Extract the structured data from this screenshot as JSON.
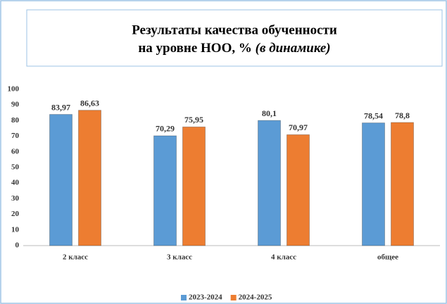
{
  "chart_data": {
    "type": "bar",
    "title": {
      "line1": "Результаты качества обученности",
      "line2": "на уровне НОО, %",
      "line2_italic": "(в динамике)"
    },
    "categories": [
      "2 класс",
      "3 класс",
      "4 класс",
      "общее"
    ],
    "series": [
      {
        "name": "2023-2024",
        "color": "#5b9bd5",
        "values": [
          83.97,
          70.29,
          80.1,
          78.54
        ],
        "value_labels": [
          "83,97",
          "70,29",
          "80,1",
          "78,54"
        ]
      },
      {
        "name": "2024-2025",
        "color": "#ed7d31",
        "values": [
          86.63,
          75.95,
          70.97,
          78.8
        ],
        "value_labels": [
          "86,63",
          "75,95",
          "70,97",
          "78,8"
        ]
      }
    ],
    "ylim": [
      0,
      100
    ],
    "yticks": [
      0,
      10,
      20,
      30,
      40,
      50,
      60,
      70,
      80,
      90,
      100
    ],
    "grid": false,
    "legend": "bottom"
  }
}
